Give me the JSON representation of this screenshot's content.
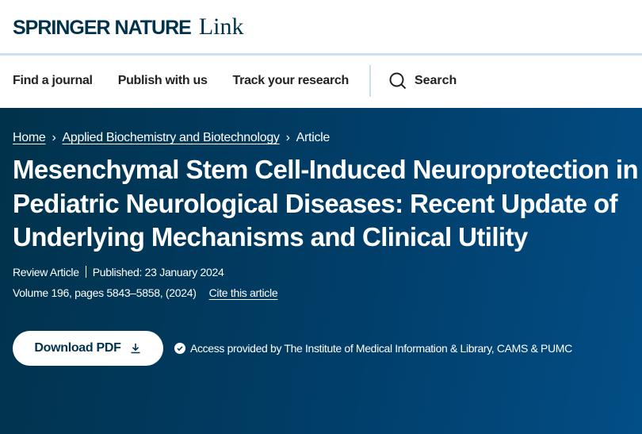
{
  "header": {
    "brand": "SPRINGER NATURE",
    "product": "Link"
  },
  "nav": {
    "items": [
      "Find a journal",
      "Publish with us",
      "Track your research"
    ],
    "search_label": "Search"
  },
  "breadcrumb": [
    "Home",
    "Applied Biochemistry and Biotechnology",
    "Article"
  ],
  "article": {
    "title": "Mesenchymal Stem Cell-Induced Neuroprotection in Pediatric Neurological Diseases: Recent Update of Underlying Mechanisms and Clinical Utility",
    "type": "Review Article",
    "published": "Published: 23 January 2024",
    "volume": "Volume 196, pages 5843–5858, (2024)",
    "cite_label": "Cite this article",
    "download_label": "Download PDF",
    "access": "Access provided by The Institute of Medical Information & Library, CAMS & PUMC"
  },
  "colors": {
    "brand": "#01324b",
    "hero_start": "#01324b",
    "hero_end": "#024e86",
    "divider": "#c8e0f0"
  }
}
